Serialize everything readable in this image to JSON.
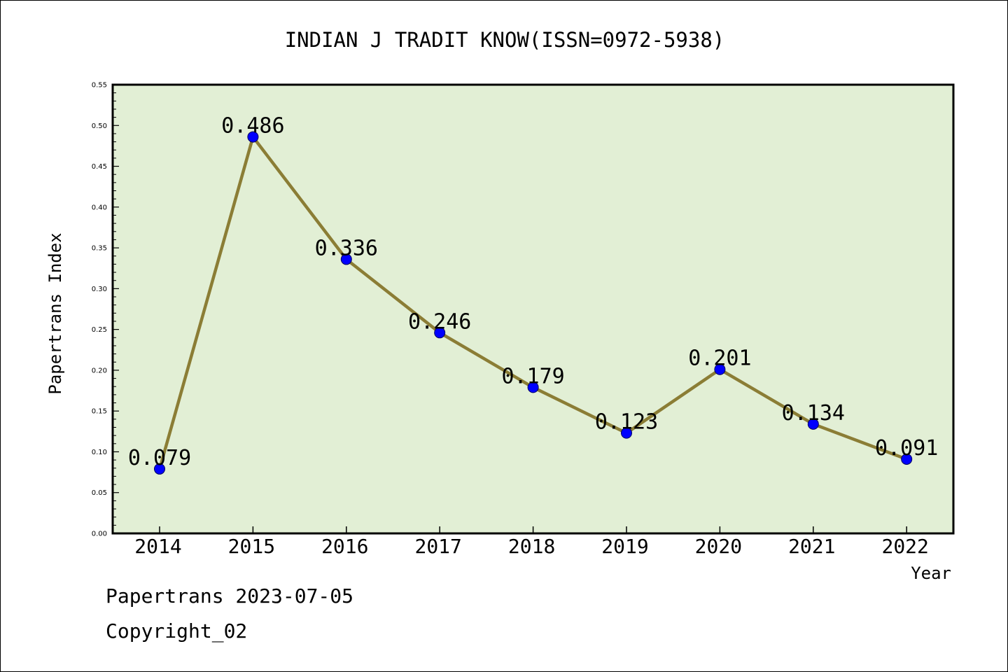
{
  "chart_data": {
    "type": "line",
    "title": "INDIAN J TRADIT KNOW(ISSN=0972-5938)",
    "xlabel": "Year",
    "ylabel": "Papertrans Index",
    "categories": [
      "2014",
      "2015",
      "2016",
      "2017",
      "2018",
      "2019",
      "2020",
      "2021",
      "2022"
    ],
    "values": [
      0.079,
      0.486,
      0.336,
      0.246,
      0.179,
      0.123,
      0.201,
      0.134,
      0.091
    ],
    "data_labels": [
      "0.079",
      "0.486",
      "0.336",
      "0.246",
      "0.179",
      "0.123",
      "0.201",
      "0.134",
      "0.091"
    ],
    "ylim": [
      0,
      0.55
    ],
    "y_ticks": [
      "0.00",
      "0.05",
      "0.10",
      "0.15",
      "0.20",
      "0.25",
      "0.30",
      "0.35",
      "0.40",
      "0.45",
      "0.50",
      "0.55"
    ],
    "grid": false,
    "legend": "none",
    "colors": {
      "plot_background": "#e2efd5",
      "line": "#8b7d35",
      "marker": "#0000ff"
    }
  },
  "footer": {
    "line1": "Papertrans 2023-07-05",
    "line2": "Copyright_02"
  }
}
